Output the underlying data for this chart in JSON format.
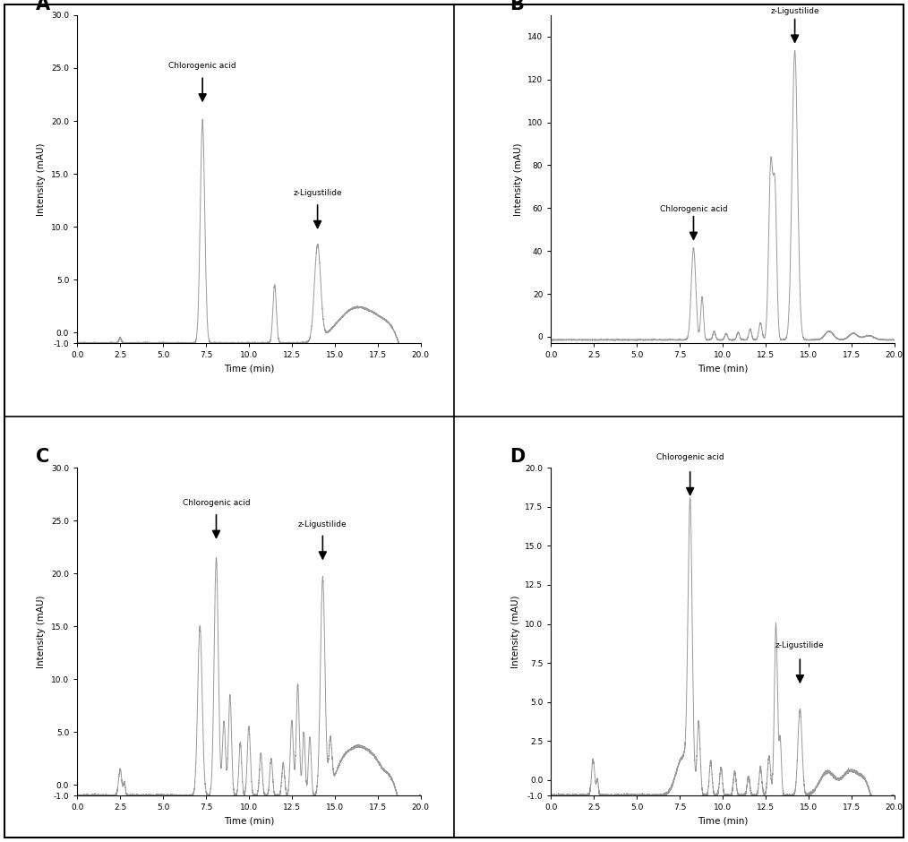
{
  "panel_labels": [
    "A",
    "B",
    "C",
    "D"
  ],
  "panel_A": {
    "ylim": [
      -1,
      30
    ],
    "yticks": [
      -1,
      0,
      5,
      10,
      15,
      20,
      25,
      30
    ],
    "ytick_labels": [
      "-1.0",
      "0.0",
      "5.0",
      "10.0",
      "15.0",
      "20.0",
      "25.0",
      "30.0"
    ],
    "xlim": [
      0,
      20
    ],
    "xticks": [
      0.0,
      2.5,
      5.0,
      7.5,
      10.0,
      12.5,
      15.0,
      17.5,
      20.0
    ],
    "xtick_labels": [
      "0.0",
      "2.5",
      "5.0",
      "7.5",
      "10.0",
      "12.5",
      "15.0",
      "17.5",
      "20.0"
    ],
    "annotations": [
      {
        "label": "Chlorogenic acid",
        "peak_x": 7.3,
        "peak_y": 21.0,
        "text_ha": "right"
      },
      {
        "label": "z-Ligustilide",
        "peak_x": 14.0,
        "peak_y": 9.0,
        "text_ha": "right"
      }
    ]
  },
  "panel_B": {
    "ylim": [
      -3,
      150
    ],
    "yticks": [
      0,
      20,
      40,
      60,
      80,
      100,
      120,
      140
    ],
    "ytick_labels": [
      "0",
      "20",
      "40",
      "60",
      "80",
      "100",
      "120",
      "140"
    ],
    "xlim": [
      0,
      20
    ],
    "xticks": [
      0.0,
      2.5,
      5.0,
      7.5,
      10.0,
      12.5,
      15.0,
      17.5,
      20.0
    ],
    "xtick_labels": [
      "0.0",
      "2.5",
      "5.0",
      "7.5",
      "10.0",
      "12.5",
      "15.0",
      "17.5",
      "20.0"
    ],
    "annotations": [
      {
        "label": "Chlorogenic acid",
        "peak_x": 8.3,
        "peak_y": 43.0,
        "text_ha": "right"
      },
      {
        "label": "z-Ligustilide",
        "peak_x": 14.2,
        "peak_y": 135.0,
        "text_ha": "right"
      }
    ]
  },
  "panel_C": {
    "ylim": [
      -1,
      30
    ],
    "yticks": [
      -1,
      0,
      5,
      10,
      15,
      20,
      25,
      30
    ],
    "ytick_labels": [
      "-1.0",
      "0.0",
      "5.0",
      "10.0",
      "15.0",
      "20.0",
      "25.0",
      "30.0"
    ],
    "xlim": [
      0,
      20
    ],
    "xticks": [
      0.0,
      2.5,
      5.0,
      7.5,
      10.0,
      12.5,
      15.0,
      17.5,
      20.0
    ],
    "xtick_labels": [
      "0.0",
      "2.5",
      "5.0",
      "7.5",
      "10.0",
      "12.5",
      "15.0",
      "17.5",
      "20.0"
    ],
    "annotations": [
      {
        "label": "Chlorogenic acid",
        "peak_x": 8.1,
        "peak_y": 22.5,
        "text_ha": "center"
      },
      {
        "label": "z-Ligustilide",
        "peak_x": 14.3,
        "peak_y": 20.5,
        "text_ha": "center"
      }
    ]
  },
  "panel_D": {
    "ylim": [
      -1,
      20
    ],
    "yticks": [
      -1,
      0,
      2.5,
      5.0,
      7.5,
      10.0,
      12.5,
      15.0,
      17.5,
      20.0
    ],
    "ytick_labels": [
      "-1.0",
      "0.0",
      "2.5",
      "5.0",
      "7.5",
      "10.0",
      "12.5",
      "15.0",
      "17.5",
      "20.0"
    ],
    "xlim": [
      0,
      20
    ],
    "xticks": [
      0.0,
      2.5,
      5.0,
      7.5,
      10.0,
      12.5,
      15.0,
      17.5,
      20.0
    ],
    "xtick_labels": [
      "0.0",
      "2.5",
      "5.0",
      "7.5",
      "10.0",
      "12.5",
      "15.0",
      "17.5",
      "20.0"
    ],
    "annotations": [
      {
        "label": "Chlorogenic acid",
        "peak_x": 8.1,
        "peak_y": 17.5,
        "text_ha": "center"
      },
      {
        "label": "z-Ligustilide",
        "peak_x": 14.5,
        "peak_y": 5.5,
        "text_ha": "center"
      }
    ]
  },
  "line_color": "#999999",
  "line_width": 0.7
}
